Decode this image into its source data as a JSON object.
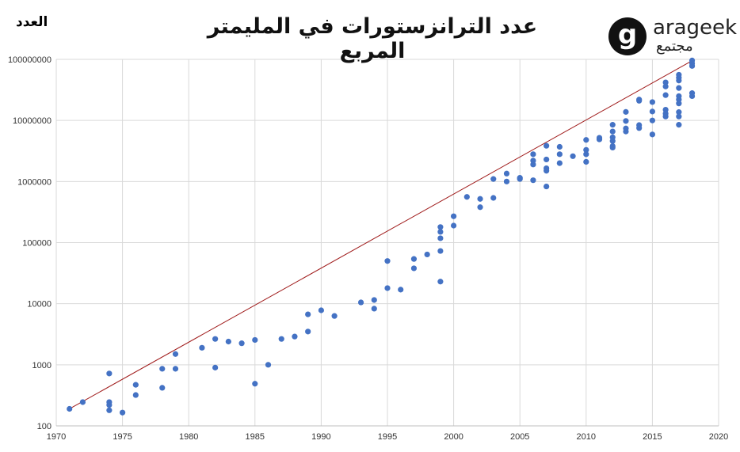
{
  "chart_data": {
    "type": "scatter",
    "title": "عدد الترانزستورات في المليمتر المربع",
    "ylabel": "العدد",
    "xlabel": "",
    "yscale": "log",
    "xlim": [
      1970,
      2020
    ],
    "ylim": [
      100,
      100000000
    ],
    "xticks": [
      "1970",
      "1975",
      "1980",
      "1985",
      "1990",
      "1995",
      "2000",
      "2005",
      "2010",
      "2015",
      "2020"
    ],
    "yticks": [
      "100",
      "1000",
      "10000",
      "100000",
      "1000000",
      "10000000",
      "100000000"
    ],
    "grid": true,
    "color": "#4472c4",
    "trend_color": "#a01c1c",
    "trend": [
      [
        1971,
        190
      ],
      [
        2018,
        95000000
      ]
    ],
    "points": [
      [
        1971,
        190
      ],
      [
        1972,
        245
      ],
      [
        1974,
        720
      ],
      [
        1974,
        245
      ],
      [
        1974,
        220
      ],
      [
        1974,
        180
      ],
      [
        1975,
        165
      ],
      [
        1976,
        470
      ],
      [
        1976,
        320
      ],
      [
        1978,
        860
      ],
      [
        1978,
        420
      ],
      [
        1979,
        1500
      ],
      [
        1979,
        860
      ],
      [
        1981,
        1900
      ],
      [
        1982,
        2650
      ],
      [
        1982,
        900
      ],
      [
        1983,
        2400
      ],
      [
        1984,
        2250
      ],
      [
        1985,
        2550
      ],
      [
        1985,
        490
      ],
      [
        1986,
        1000
      ],
      [
        1987,
        2650
      ],
      [
        1988,
        2900
      ],
      [
        1989,
        6700
      ],
      [
        1989,
        3500
      ],
      [
        1990,
        7800
      ],
      [
        1991,
        6300
      ],
      [
        1993,
        10500
      ],
      [
        1994,
        11500
      ],
      [
        1994,
        8300
      ],
      [
        1995,
        50000
      ],
      [
        1995,
        18000
      ],
      [
        1996,
        17000
      ],
      [
        1997,
        54000
      ],
      [
        1997,
        38000
      ],
      [
        1998,
        64000
      ],
      [
        1999,
        180000
      ],
      [
        1999,
        150000
      ],
      [
        1999,
        118000
      ],
      [
        1999,
        73000
      ],
      [
        1999,
        23000
      ],
      [
        2000,
        270000
      ],
      [
        2000,
        190000
      ],
      [
        2001,
        560000
      ],
      [
        2002,
        520000
      ],
      [
        2002,
        380000
      ],
      [
        2003,
        1100000
      ],
      [
        2003,
        540000
      ],
      [
        2004,
        1350000
      ],
      [
        2004,
        1000000
      ],
      [
        2005,
        1150000
      ],
      [
        2005,
        1100000
      ],
      [
        2006,
        2800000
      ],
      [
        2006,
        2200000
      ],
      [
        2006,
        1900000
      ],
      [
        2006,
        1050000
      ],
      [
        2007,
        3850000
      ],
      [
        2007,
        2300000
      ],
      [
        2007,
        1650000
      ],
      [
        2007,
        1500000
      ],
      [
        2007,
        830000
      ],
      [
        2008,
        3700000
      ],
      [
        2008,
        2800000
      ],
      [
        2008,
        2000000
      ],
      [
        2009,
        2600000
      ],
      [
        2010,
        4800000
      ],
      [
        2010,
        3300000
      ],
      [
        2010,
        2800000
      ],
      [
        2010,
        2100000
      ],
      [
        2011,
        5200000
      ],
      [
        2011,
        4900000
      ],
      [
        2012,
        8500000
      ],
      [
        2012,
        6600000
      ],
      [
        2012,
        5300000
      ],
      [
        2012,
        4600000
      ],
      [
        2012,
        3800000
      ],
      [
        2012,
        3600000
      ],
      [
        2013,
        13800000
      ],
      [
        2013,
        9800000
      ],
      [
        2013,
        7400000
      ],
      [
        2013,
        6600000
      ],
      [
        2014,
        22000000
      ],
      [
        2014,
        21000000
      ],
      [
        2014,
        8400000
      ],
      [
        2014,
        7500000
      ],
      [
        2015,
        20000000
      ],
      [
        2015,
        14000000
      ],
      [
        2015,
        10000000
      ],
      [
        2015,
        5900000
      ],
      [
        2016,
        42000000
      ],
      [
        2016,
        36000000
      ],
      [
        2016,
        26000000
      ],
      [
        2016,
        15000000
      ],
      [
        2016,
        13000000
      ],
      [
        2016,
        11600000
      ],
      [
        2017,
        56000000
      ],
      [
        2017,
        50000000
      ],
      [
        2017,
        45000000
      ],
      [
        2017,
        34000000
      ],
      [
        2017,
        25000000
      ],
      [
        2017,
        22000000
      ],
      [
        2017,
        19000000
      ],
      [
        2017,
        13700000
      ],
      [
        2017,
        11600000
      ],
      [
        2017,
        8500000
      ],
      [
        2018,
        96000000
      ],
      [
        2018,
        86000000
      ],
      [
        2018,
        78000000
      ],
      [
        2018,
        28000000
      ],
      [
        2018,
        25000000
      ]
    ]
  },
  "logo": {
    "letter": "g",
    "name": "arageek",
    "arabic": "مجتمع"
  }
}
